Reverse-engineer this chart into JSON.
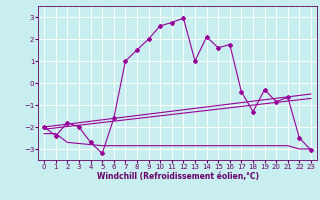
{
  "xlabel": "Windchill (Refroidissement éolien,°C)",
  "bg_color": "#c8eef0",
  "grid_color": "#ffffff",
  "line_color": "#990099",
  "xlim": [
    -0.5,
    23.5
  ],
  "ylim": [
    -3.5,
    3.5
  ],
  "yticks": [
    -3,
    -2,
    -1,
    0,
    1,
    2,
    3
  ],
  "xticks": [
    0,
    1,
    2,
    3,
    4,
    5,
    6,
    7,
    8,
    9,
    10,
    11,
    12,
    13,
    14,
    15,
    16,
    17,
    18,
    19,
    20,
    21,
    22,
    23
  ],
  "series1_x": [
    0,
    1,
    2,
    3,
    4,
    5,
    6,
    7,
    8,
    9,
    10,
    11,
    12,
    13,
    14,
    15,
    16,
    17,
    18,
    19,
    20,
    21,
    22,
    23
  ],
  "series1_y": [
    -2.0,
    -2.4,
    -1.8,
    -2.0,
    -2.7,
    -3.2,
    -1.6,
    1.0,
    1.5,
    2.0,
    2.6,
    2.75,
    2.95,
    1.0,
    2.1,
    1.6,
    1.75,
    -0.4,
    -1.3,
    -0.3,
    -0.85,
    -0.65,
    -2.5,
    -3.05
  ],
  "series2_x": [
    0,
    2,
    23
  ],
  "series2_y": [
    -2.0,
    -1.75,
    -0.6
  ],
  "series3_x": [
    0,
    23
  ],
  "series3_y": [
    -2.1,
    -0.8
  ],
  "series4_x": [
    0,
    1,
    2,
    3,
    4,
    5,
    6,
    7,
    8,
    9,
    10,
    11,
    12,
    13,
    14,
    15,
    16,
    17,
    18,
    19,
    20,
    21,
    22,
    23
  ],
  "series4_y": [
    -2.3,
    -2.3,
    -2.7,
    -2.75,
    -2.8,
    -2.85,
    -2.85,
    -2.85,
    -2.85,
    -2.85,
    -2.85,
    -2.85,
    -2.85,
    -2.85,
    -2.85,
    -2.85,
    -2.85,
    -2.85,
    -2.85,
    -2.85,
    -2.85,
    -2.85,
    -3.0,
    -3.0
  ],
  "tick_color": "#660066",
  "tick_fontsize": 5,
  "xlabel_fontsize": 5.5
}
